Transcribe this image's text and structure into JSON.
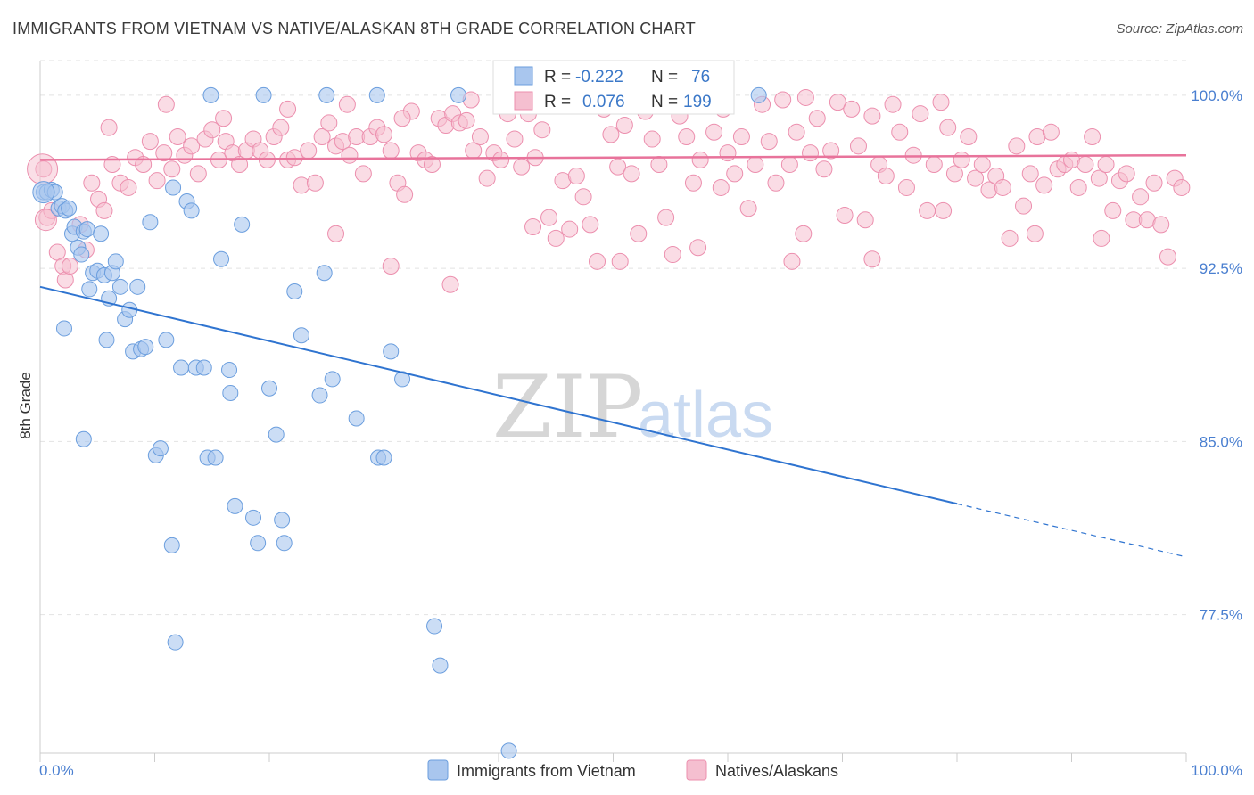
{
  "title": "IMMIGRANTS FROM VIETNAM VS NATIVE/ALASKAN 8TH GRADE CORRELATION CHART",
  "source": "Source: ZipAtlas.com",
  "watermark": {
    "zip": "ZIP",
    "atlas": "atlas"
  },
  "colors": {
    "blue_fill": "#a9c6ee",
    "blue_stroke": "#6b9ede",
    "blue_line": "#2f74d0",
    "pink_fill": "#f5bfd0",
    "pink_stroke": "#ec8fae",
    "pink_line": "#e8739b",
    "tick_label": "#4a7fd0",
    "grid": "#e2e2e2"
  },
  "legend": {
    "r_label": "R =",
    "n_label": "N =",
    "rows": [
      {
        "r": "-0.222",
        "n": "76"
      },
      {
        "r": "0.076",
        "n": "199"
      }
    ]
  },
  "chart_data": {
    "type": "scatter",
    "title": "IMMIGRANTS FROM VIETNAM VS NATIVE/ALASKAN 8TH GRADE CORRELATION CHART",
    "xlabel": "",
    "ylabel": "8th Grade",
    "xlim": [
      0,
      100
    ],
    "ylim": [
      71.5,
      101.5
    ],
    "x_tick_labels": [
      "0.0%",
      "100.0%"
    ],
    "y_ticks": [
      77.5,
      85.0,
      92.5,
      100.0
    ],
    "y_tick_labels": [
      "77.5%",
      "85.0%",
      "92.5%",
      "100.0%"
    ],
    "grid": true,
    "legend_position": "top-center",
    "series": [
      {
        "name": "Immigrants from Vietnam",
        "color": "#a9c6ee",
        "trend": {
          "x1": 0,
          "y1": 91.7,
          "x2": 80,
          "y2": 82.3,
          "dashed_to_x": 100,
          "dashed_to_y": 80.0
        },
        "points": [
          [
            0.3,
            95.8
          ],
          [
            0.6,
            95.8
          ],
          [
            1.0,
            95.9
          ],
          [
            1.3,
            95.8
          ],
          [
            1.6,
            95.1
          ],
          [
            1.9,
            95.2
          ],
          [
            2.2,
            95.0
          ],
          [
            2.5,
            95.1
          ],
          [
            2.8,
            94.0
          ],
          [
            3.0,
            94.3
          ],
          [
            3.3,
            93.4
          ],
          [
            3.6,
            93.1
          ],
          [
            3.8,
            94.1
          ],
          [
            4.1,
            94.2
          ],
          [
            4.3,
            91.6
          ],
          [
            4.6,
            92.3
          ],
          [
            5.0,
            92.4
          ],
          [
            5.3,
            94.0
          ],
          [
            5.6,
            92.2
          ],
          [
            6.0,
            91.2
          ],
          [
            6.3,
            92.3
          ],
          [
            6.6,
            92.8
          ],
          [
            7.0,
            91.7
          ],
          [
            7.4,
            90.3
          ],
          [
            7.8,
            90.7
          ],
          [
            8.1,
            88.9
          ],
          [
            8.5,
            91.7
          ],
          [
            8.8,
            89.0
          ],
          [
            9.2,
            89.1
          ],
          [
            9.6,
            94.5
          ],
          [
            10.1,
            84.4
          ],
          [
            10.5,
            84.7
          ],
          [
            11.0,
            89.4
          ],
          [
            11.5,
            80.5
          ],
          [
            11.8,
            76.3
          ],
          [
            12.3,
            88.2
          ],
          [
            12.8,
            95.4
          ],
          [
            13.2,
            95.0
          ],
          [
            13.6,
            88.2
          ],
          [
            14.3,
            88.2
          ],
          [
            14.6,
            84.3
          ],
          [
            15.3,
            84.3
          ],
          [
            15.8,
            92.9
          ],
          [
            16.5,
            88.1
          ],
          [
            16.6,
            87.1
          ],
          [
            17.0,
            82.2
          ],
          [
            17.6,
            94.4
          ],
          [
            18.6,
            81.7
          ],
          [
            19.0,
            80.6
          ],
          [
            20.0,
            87.3
          ],
          [
            20.6,
            85.3
          ],
          [
            21.1,
            81.6
          ],
          [
            21.3,
            80.6
          ],
          [
            22.2,
            91.5
          ],
          [
            22.8,
            89.6
          ],
          [
            2.1,
            89.9
          ],
          [
            3.8,
            85.1
          ],
          [
            5.8,
            89.4
          ],
          [
            11.6,
            96.0
          ],
          [
            14.9,
            100.0
          ],
          [
            19.5,
            100.0
          ],
          [
            24.4,
            87.0
          ],
          [
            25.0,
            100.0
          ],
          [
            24.8,
            92.3
          ],
          [
            25.5,
            87.7
          ],
          [
            27.6,
            86.0
          ],
          [
            29.4,
            100.0
          ],
          [
            29.5,
            84.3
          ],
          [
            30.0,
            84.3
          ],
          [
            30.6,
            88.9
          ],
          [
            31.6,
            87.7
          ],
          [
            34.4,
            77.0
          ],
          [
            34.9,
            75.3
          ],
          [
            40.9,
            71.6
          ],
          [
            62.7,
            100.0
          ],
          [
            36.5,
            100.0
          ]
        ]
      },
      {
        "name": "Natives/Alaskans",
        "color": "#f5bfd0",
        "trend": {
          "x1": 0,
          "y1": 97.2,
          "x2": 100,
          "y2": 97.4
        },
        "points": [
          [
            0.3,
            96.8
          ],
          [
            0.6,
            94.7
          ],
          [
            1.0,
            95.0
          ],
          [
            1.5,
            93.2
          ],
          [
            2.0,
            92.6
          ],
          [
            2.2,
            92.0
          ],
          [
            2.6,
            92.6
          ],
          [
            3.5,
            94.4
          ],
          [
            4.0,
            93.3
          ],
          [
            4.5,
            96.2
          ],
          [
            5.1,
            95.5
          ],
          [
            5.6,
            95.0
          ],
          [
            6.3,
            97.0
          ],
          [
            7.0,
            96.2
          ],
          [
            7.7,
            96.0
          ],
          [
            8.3,
            97.3
          ],
          [
            9.0,
            97.0
          ],
          [
            9.6,
            98.0
          ],
          [
            10.2,
            96.3
          ],
          [
            10.8,
            97.5
          ],
          [
            11.5,
            96.8
          ],
          [
            12.0,
            98.2
          ],
          [
            12.6,
            97.4
          ],
          [
            13.2,
            97.8
          ],
          [
            13.8,
            96.6
          ],
          [
            14.4,
            98.1
          ],
          [
            15.0,
            98.5
          ],
          [
            15.6,
            97.2
          ],
          [
            16.2,
            98.0
          ],
          [
            16.8,
            97.5
          ],
          [
            17.4,
            97.0
          ],
          [
            18.0,
            97.6
          ],
          [
            18.6,
            98.1
          ],
          [
            19.2,
            97.6
          ],
          [
            19.8,
            97.2
          ],
          [
            20.4,
            98.2
          ],
          [
            21.0,
            98.6
          ],
          [
            21.6,
            97.2
          ],
          [
            22.2,
            97.3
          ],
          [
            22.8,
            96.1
          ],
          [
            23.4,
            97.6
          ],
          [
            24.0,
            96.2
          ],
          [
            24.6,
            98.2
          ],
          [
            25.2,
            98.8
          ],
          [
            25.8,
            97.8
          ],
          [
            26.4,
            98.0
          ],
          [
            27.0,
            97.4
          ],
          [
            27.6,
            98.2
          ],
          [
            28.2,
            96.6
          ],
          [
            28.8,
            98.2
          ],
          [
            29.4,
            98.6
          ],
          [
            30.0,
            98.3
          ],
          [
            30.6,
            97.6
          ],
          [
            31.2,
            96.2
          ],
          [
            31.8,
            95.7
          ],
          [
            32.4,
            99.3
          ],
          [
            33.0,
            97.5
          ],
          [
            33.6,
            97.2
          ],
          [
            34.2,
            97.0
          ],
          [
            34.8,
            99.0
          ],
          [
            35.4,
            98.7
          ],
          [
            36.0,
            99.2
          ],
          [
            36.6,
            98.8
          ],
          [
            37.2,
            98.9
          ],
          [
            37.8,
            97.6
          ],
          [
            38.4,
            98.2
          ],
          [
            39.0,
            96.4
          ],
          [
            39.6,
            97.5
          ],
          [
            40.2,
            97.2
          ],
          [
            40.8,
            99.2
          ],
          [
            41.4,
            98.1
          ],
          [
            42.0,
            96.9
          ],
          [
            42.6,
            99.2
          ],
          [
            43.2,
            97.3
          ],
          [
            43.8,
            98.5
          ],
          [
            44.4,
            94.7
          ],
          [
            45.0,
            93.8
          ],
          [
            45.6,
            96.3
          ],
          [
            46.2,
            94.2
          ],
          [
            46.8,
            96.5
          ],
          [
            47.4,
            95.6
          ],
          [
            48.0,
            94.4
          ],
          [
            48.6,
            92.8
          ],
          [
            49.2,
            99.4
          ],
          [
            49.8,
            98.3
          ],
          [
            50.4,
            96.9
          ],
          [
            51.0,
            98.7
          ],
          [
            51.6,
            96.6
          ],
          [
            52.2,
            94.0
          ],
          [
            52.8,
            99.3
          ],
          [
            53.4,
            98.1
          ],
          [
            54.0,
            97.0
          ],
          [
            54.6,
            94.7
          ],
          [
            55.2,
            93.1
          ],
          [
            55.8,
            99.1
          ],
          [
            56.4,
            98.2
          ],
          [
            57.0,
            96.2
          ],
          [
            57.6,
            97.2
          ],
          [
            58.2,
            99.8
          ],
          [
            58.8,
            98.4
          ],
          [
            59.4,
            96.0
          ],
          [
            60.0,
            97.5
          ],
          [
            60.6,
            96.6
          ],
          [
            61.2,
            98.2
          ],
          [
            61.8,
            95.1
          ],
          [
            62.4,
            97.0
          ],
          [
            63.0,
            99.6
          ],
          [
            63.6,
            98.0
          ],
          [
            64.2,
            96.2
          ],
          [
            64.8,
            99.8
          ],
          [
            65.4,
            97.0
          ],
          [
            66.0,
            98.4
          ],
          [
            66.6,
            94.0
          ],
          [
            67.2,
            97.5
          ],
          [
            67.8,
            99.0
          ],
          [
            68.4,
            96.8
          ],
          [
            69.0,
            97.6
          ],
          [
            69.6,
            99.7
          ],
          [
            70.2,
            94.8
          ],
          [
            70.8,
            99.4
          ],
          [
            71.4,
            97.8
          ],
          [
            72.0,
            94.6
          ],
          [
            72.6,
            99.1
          ],
          [
            73.2,
            97.0
          ],
          [
            73.8,
            96.5
          ],
          [
            74.4,
            99.6
          ],
          [
            75.0,
            98.4
          ],
          [
            75.6,
            96.0
          ],
          [
            76.2,
            97.4
          ],
          [
            76.8,
            99.2
          ],
          [
            77.4,
            95.0
          ],
          [
            78.0,
            97.0
          ],
          [
            78.6,
            99.7
          ],
          [
            79.2,
            98.6
          ],
          [
            79.8,
            96.6
          ],
          [
            80.4,
            97.2
          ],
          [
            81.0,
            98.2
          ],
          [
            81.6,
            96.4
          ],
          [
            82.2,
            97.0
          ],
          [
            82.8,
            95.9
          ],
          [
            83.4,
            96.5
          ],
          [
            84.0,
            96.0
          ],
          [
            84.6,
            93.8
          ],
          [
            85.2,
            97.8
          ],
          [
            85.8,
            95.2
          ],
          [
            86.4,
            96.6
          ],
          [
            87.0,
            98.2
          ],
          [
            87.6,
            96.1
          ],
          [
            88.2,
            98.4
          ],
          [
            88.8,
            96.8
          ],
          [
            89.4,
            97.0
          ],
          [
            90.0,
            97.2
          ],
          [
            90.6,
            96.0
          ],
          [
            91.2,
            97.0
          ],
          [
            91.8,
            98.2
          ],
          [
            92.4,
            96.4
          ],
          [
            93.0,
            97.0
          ],
          [
            93.6,
            95.0
          ],
          [
            94.2,
            96.3
          ],
          [
            94.8,
            96.6
          ],
          [
            95.4,
            94.6
          ],
          [
            96.0,
            95.6
          ],
          [
            96.6,
            94.6
          ],
          [
            97.2,
            96.2
          ],
          [
            97.8,
            94.4
          ],
          [
            98.4,
            93.0
          ],
          [
            99.0,
            96.4
          ],
          [
            99.6,
            96.0
          ],
          [
            25.8,
            94.0
          ],
          [
            30.6,
            92.6
          ],
          [
            35.8,
            91.8
          ],
          [
            43.0,
            94.3
          ],
          [
            50.6,
            92.8
          ],
          [
            57.4,
            93.4
          ],
          [
            65.6,
            92.8
          ],
          [
            72.6,
            92.9
          ],
          [
            78.8,
            95.0
          ],
          [
            86.8,
            94.0
          ],
          [
            92.6,
            93.8
          ],
          [
            6.0,
            98.6
          ],
          [
            11.0,
            99.6
          ],
          [
            16.0,
            99.0
          ],
          [
            21.6,
            99.4
          ],
          [
            26.8,
            99.6
          ],
          [
            31.6,
            99.0
          ],
          [
            37.6,
            99.8
          ],
          [
            42.8,
            99.6
          ],
          [
            47.8,
            99.8
          ],
          [
            53.8,
            99.9
          ],
          [
            59.6,
            99.4
          ],
          [
            66.8,
            99.9
          ]
        ]
      }
    ]
  },
  "bottom_legend": [
    {
      "label": "Immigrants from Vietnam"
    },
    {
      "label": "Natives/Alaskans"
    }
  ]
}
